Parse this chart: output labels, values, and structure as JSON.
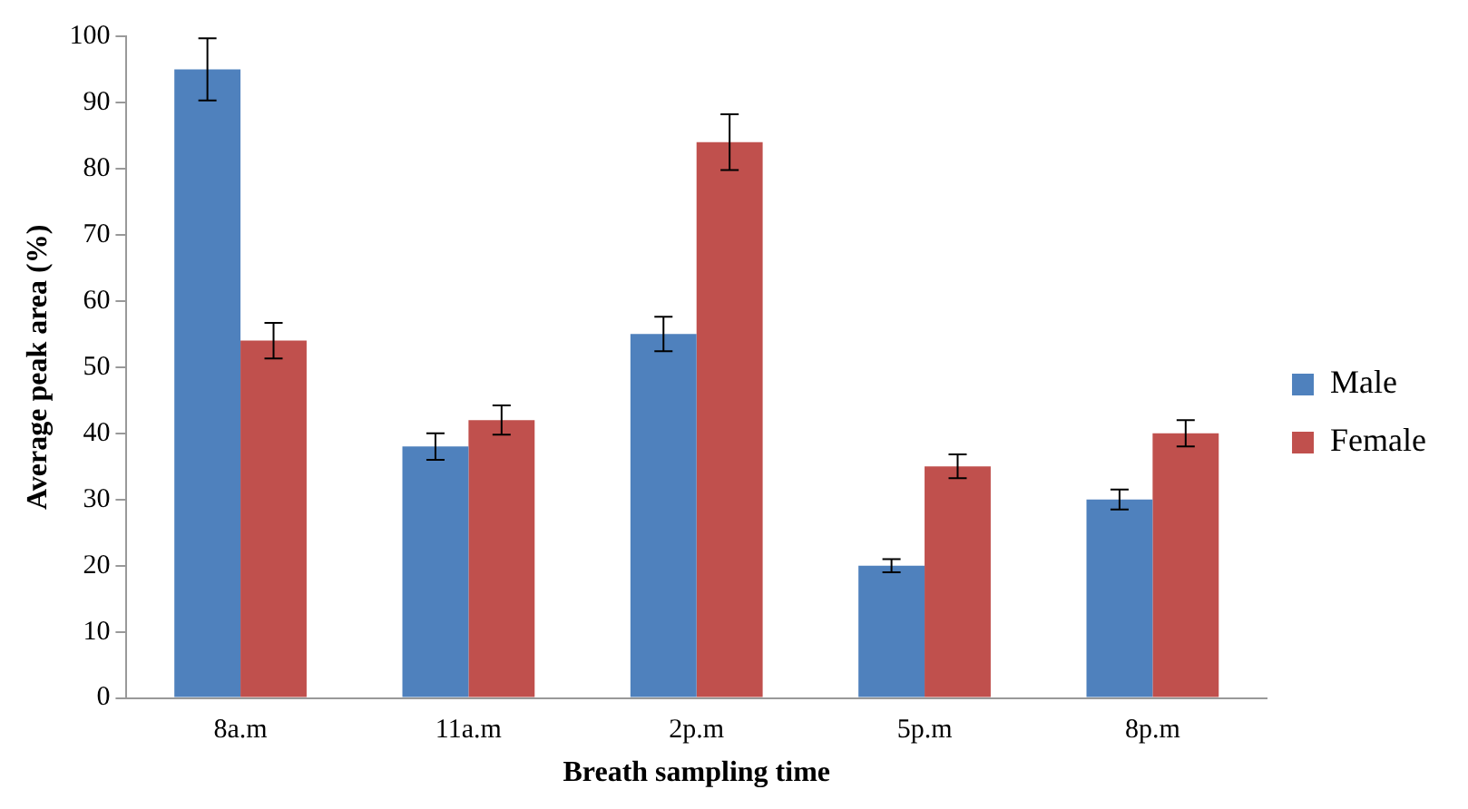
{
  "chart_data": {
    "type": "bar",
    "xlabel": "Breath sampling time",
    "ylabel": "Average peak area (%)",
    "categories": [
      "8a.m",
      "11a.m",
      "2p.m",
      "5p.m",
      "8p.m"
    ],
    "series": [
      {
        "name": "Male",
        "color": "#4f81bd",
        "values": [
          95,
          38,
          55,
          20,
          30
        ],
        "errors": [
          4.7,
          2,
          2.6,
          1,
          1.5
        ]
      },
      {
        "name": "Female",
        "color": "#c0504d",
        "values": [
          54,
          42,
          84,
          35,
          40
        ],
        "errors": [
          2.7,
          2.2,
          4.2,
          1.8,
          2
        ]
      }
    ],
    "ylim": [
      0,
      100
    ],
    "yticks": [
      0,
      10,
      20,
      30,
      40,
      50,
      60,
      70,
      80,
      90,
      100
    ],
    "grid": false,
    "legend": "right"
  }
}
